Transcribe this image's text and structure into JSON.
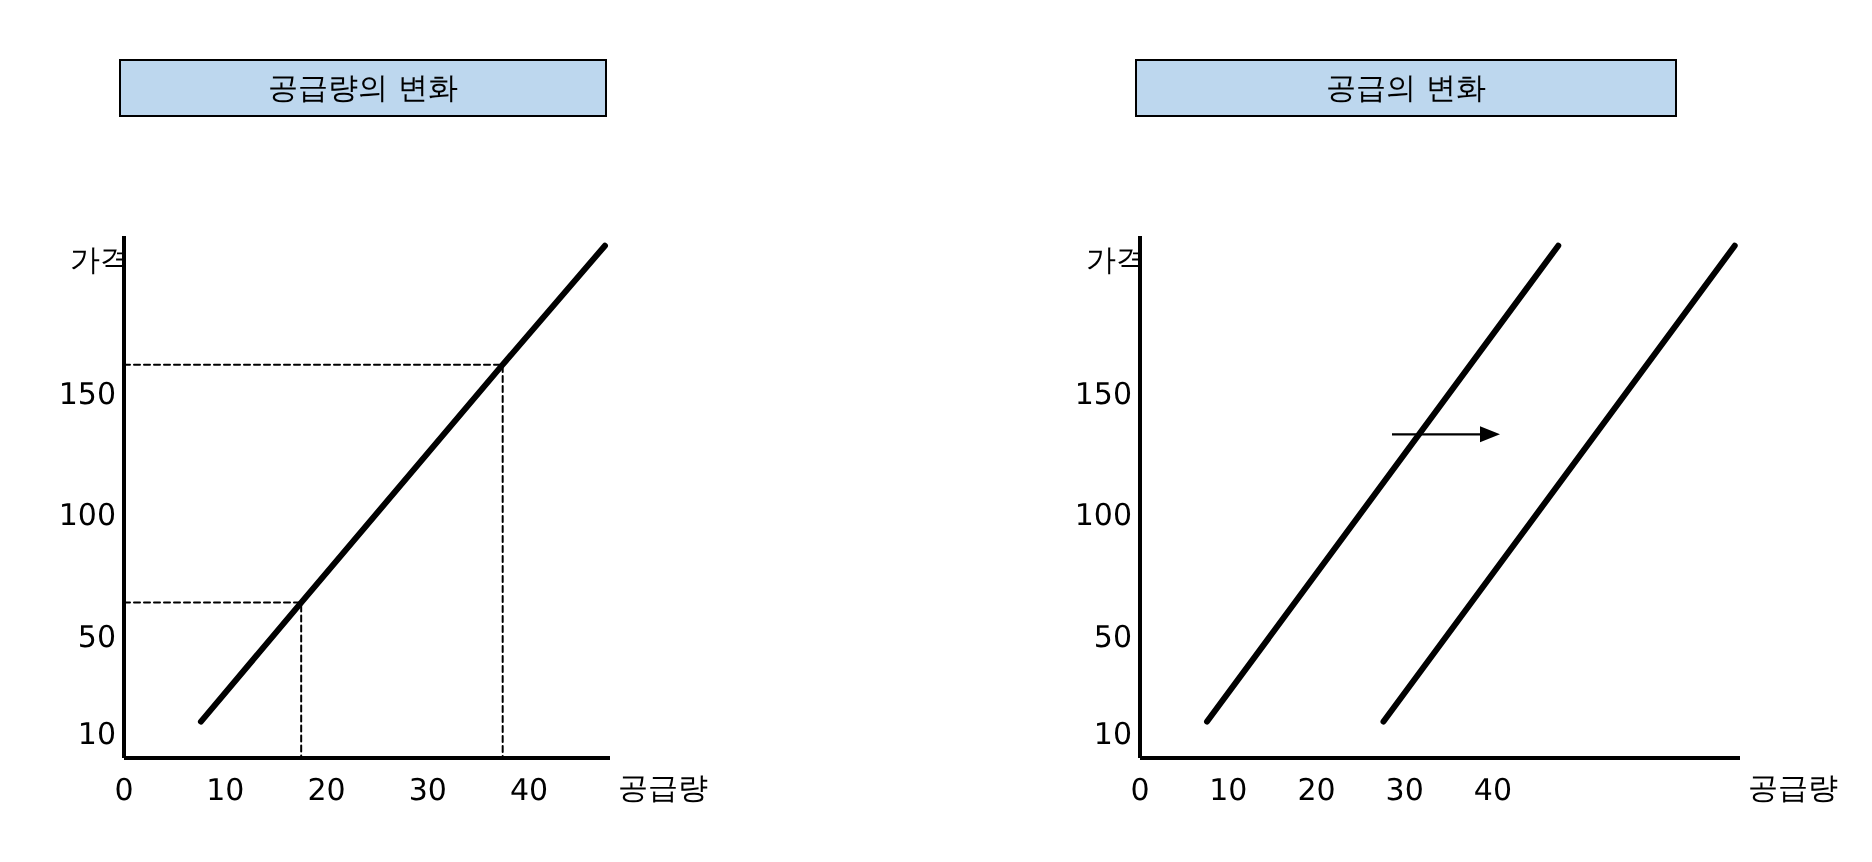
{
  "chart_data": [
    {
      "type": "line",
      "title": "공급량의 변화",
      "xlabel": "공급량",
      "ylabel": "가격",
      "xlim": [
        0,
        48
      ],
      "ylim": [
        0,
        215
      ],
      "xticks": [
        0,
        10,
        20,
        30,
        40
      ],
      "yticks": [
        10,
        50,
        100,
        150
      ],
      "grid": false,
      "marker": "none",
      "series": [
        {
          "color": "#000000",
          "line_style": "solid",
          "x": [
            7.6,
            17.5,
            37.4,
            47.5
          ],
          "values": [
            15,
            64,
            162,
            211
          ]
        },
        {
          "color": "#000000",
          "line_style": "dashed",
          "x": [
            0,
            17.5,
            17.5
          ],
          "values": [
            64,
            64,
            0
          ]
        },
        {
          "color": "#000000",
          "line_style": "dashed",
          "x": [
            0,
            37.4,
            37.4
          ],
          "values": [
            162,
            162,
            0
          ]
        }
      ]
    },
    {
      "type": "line",
      "title": "공급의 변화",
      "xlabel": "공급량",
      "ylabel": "가격",
      "xlim": [
        0,
        68
      ],
      "ylim": [
        0,
        215
      ],
      "xticks": [
        0,
        10,
        20,
        30,
        40
      ],
      "yticks": [
        10,
        50,
        100,
        150
      ],
      "grid": false,
      "marker": "none",
      "series": [
        {
          "color": "#000000",
          "line_style": "solid",
          "x": [
            7.6,
            47.4
          ],
          "values": [
            15,
            211
          ]
        },
        {
          "color": "#000000",
          "line_style": "solid",
          "x": [
            27.6,
            67.4
          ],
          "values": [
            15,
            211
          ]
        }
      ]
    }
  ]
}
